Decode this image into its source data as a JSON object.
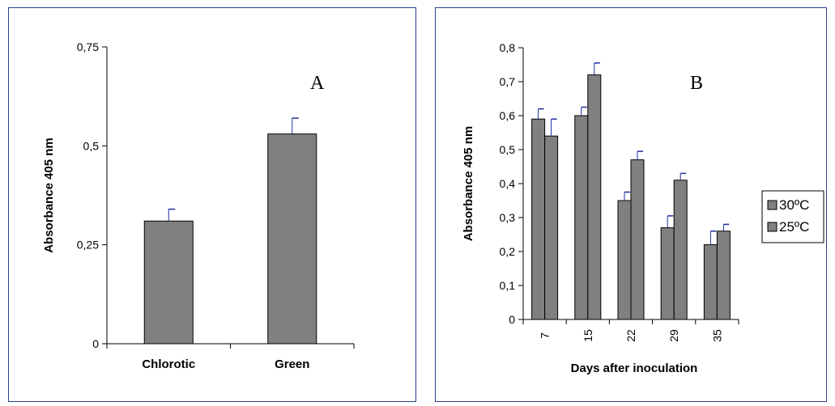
{
  "chart_data": [
    {
      "type": "bar",
      "panel_label": "A",
      "categories": [
        "Chlorotic",
        "Green"
      ],
      "values": [
        0.31,
        0.53
      ],
      "errors": [
        0.03,
        0.04
      ],
      "ylabel": "Absorbance 405 nm",
      "ylim": [
        0,
        0.75
      ],
      "yticks": [
        "0",
        "0,25",
        "0,5",
        "0,75"
      ],
      "ytick_values": [
        0,
        0.25,
        0.5,
        0.75
      ],
      "bar_color": "#808080",
      "error_color": "#1f2fa0"
    },
    {
      "type": "bar",
      "panel_label": "B",
      "categories": [
        "7",
        "15",
        "22",
        "29",
        "35"
      ],
      "series": [
        {
          "name": "30ºC",
          "values": [
            0.59,
            0.6,
            0.35,
            0.27,
            0.22
          ],
          "errors": [
            0.03,
            0.025,
            0.025,
            0.035,
            0.04
          ]
        },
        {
          "name": "25ºC",
          "values": [
            0.54,
            0.72,
            0.47,
            0.41,
            0.26
          ],
          "errors": [
            0.05,
            0.035,
            0.025,
            0.02,
            0.02
          ]
        }
      ],
      "xlabel": "Days after inoculation",
      "ylabel": "Absorbance 405 nm",
      "ylim": [
        0,
        0.8
      ],
      "yticks": [
        "0",
        "0,1",
        "0,2",
        "0,3",
        "0,4",
        "0,5",
        "0,6",
        "0,7",
        "0,8"
      ],
      "ytick_values": [
        0,
        0.1,
        0.2,
        0.3,
        0.4,
        0.5,
        0.6,
        0.7,
        0.8
      ],
      "legend_position": "right",
      "bar_color": "#808080",
      "error_color": "#1f2fa0"
    }
  ]
}
